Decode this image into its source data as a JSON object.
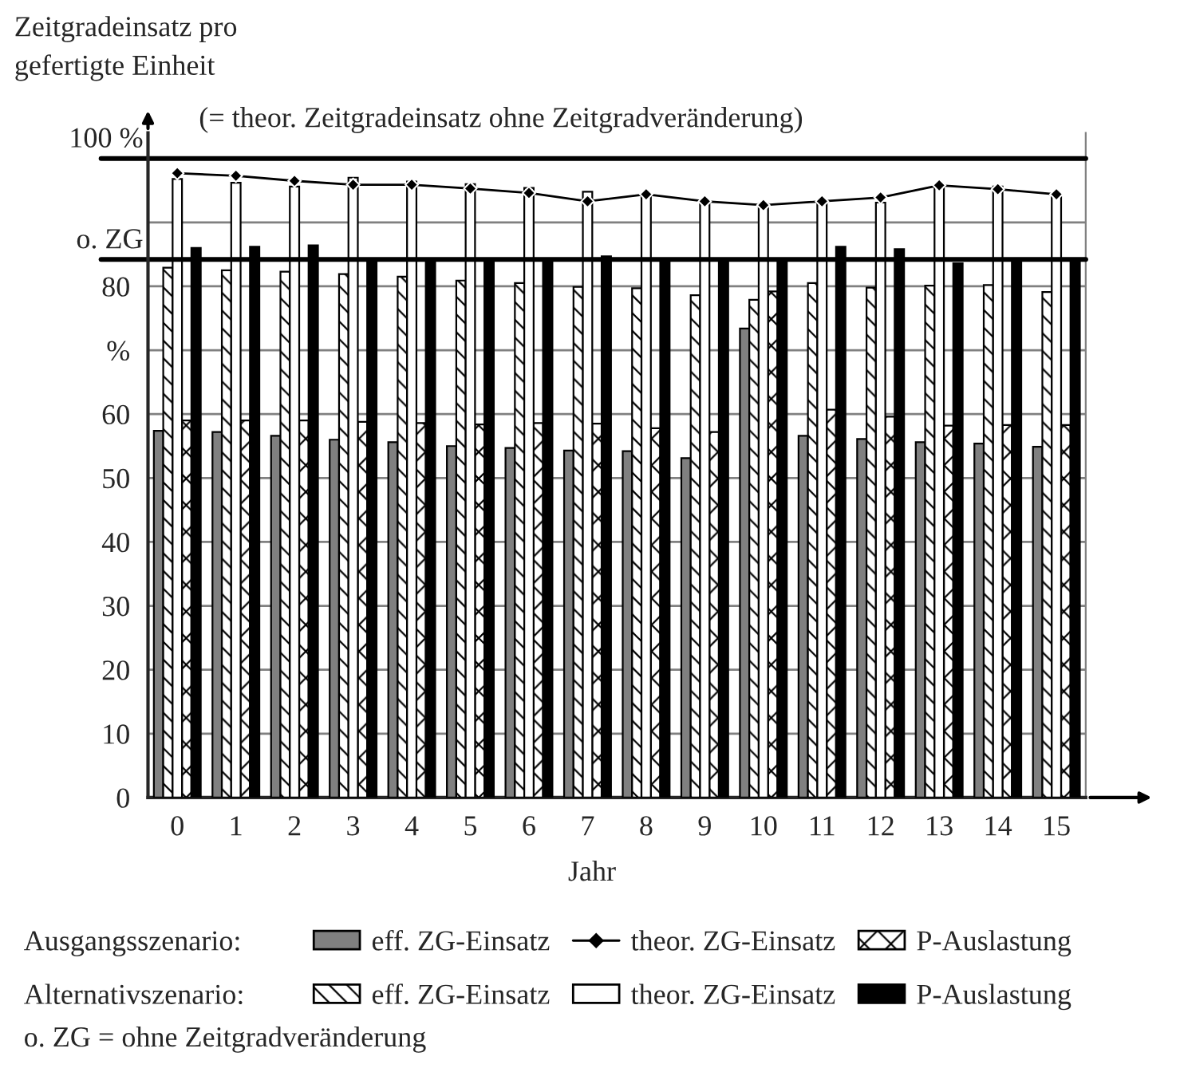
{
  "chart_data": {
    "type": "bar",
    "ylabel": "Zeitgradeinsatz pro\ngefertigte Einheit",
    "xlabel": "Jahr",
    "categories": [
      "0",
      "1",
      "2",
      "3",
      "4",
      "5",
      "6",
      "7",
      "8",
      "9",
      "10",
      "11",
      "12",
      "13",
      "14",
      "15"
    ],
    "legend_title": [
      "Ausgangsszenario:",
      "Alternativszenario:"
    ],
    "series": [
      {
        "name": "eff. ZG-Einsatz",
        "color": "#808080",
        "values": [
          57.4,
          57.2,
          56.6,
          56.0,
          55.6,
          55.0,
          54.7,
          54.3,
          54.2,
          53.1,
          73.4,
          56.6,
          56.1,
          55.6,
          55.4,
          54.9
        ]
      },
      {
        "name": "theor. ZG-Einsatz",
        "type": "line",
        "color": "#000000",
        "marker": "diamond",
        "values": [
          97.7,
          97.3,
          96.5,
          95.9,
          95.9,
          95.3,
          94.6,
          93.3,
          94.4,
          93.3,
          92.7,
          93.3,
          93.9,
          95.8,
          95.2,
          94.4
        ]
      },
      {
        "name": "P-Auslastung",
        "color": "#000000",
        "values": [
          59.0,
          59.0,
          59.0,
          58.8,
          58.6,
          58.4,
          58.6,
          58.5,
          57.8,
          57.2,
          79.2,
          60.7,
          59.6,
          58.2,
          58.3,
          58.3
        ]
      },
      {
        "name": "eff. ZG-Einsatz",
        "color": "#000000",
        "values": [
          82.9,
          82.5,
          82.3,
          81.9,
          81.5,
          80.9,
          80.5,
          79.9,
          79.7,
          78.6,
          77.9,
          80.5,
          79.8,
          80.1,
          80.2,
          79.1
        ]
      },
      {
        "name": "theor. ZG-Einsatz",
        "color": "#ffffff",
        "values": [
          96.8,
          96.2,
          95.6,
          97.0,
          96.4,
          96.0,
          95.4,
          94.8,
          94.4,
          93.1,
          92.9,
          93.3,
          93.1,
          95.8,
          95.6,
          94.4
        ]
      },
      {
        "name": "P-Auslastung",
        "color": "#000000",
        "values": [
          86.0,
          86.2,
          86.4,
          84.2,
          84.2,
          84.2,
          84.2,
          84.7,
          84.2,
          84.2,
          84.2,
          86.2,
          85.8,
          83.6,
          84.2,
          84.2
        ]
      }
    ],
    "ylim": [
      0,
      104
    ],
    "yticks": [
      0,
      10,
      20,
      30,
      40,
      50,
      60,
      {
        "value": 70,
        "label": "%"
      },
      80,
      {
        "value": 90,
        "label": null
      }
    ],
    "ref_lines": [
      {
        "axis": "y",
        "value": 100,
        "label": "100 %"
      },
      {
        "axis": "y",
        "value": 84.2,
        "label": "o. ZG"
      }
    ],
    "annotations": [
      "(= theor. Zeitgradeinsatz ohne Zeitgradveränderung)",
      "o. ZG = ohne Zeitgradveränderung"
    ],
    "grid": "y",
    "legend": "bottom"
  }
}
